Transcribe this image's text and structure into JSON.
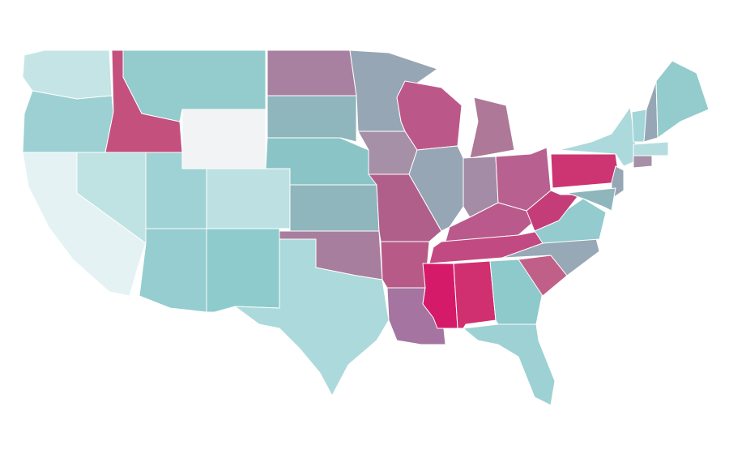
{
  "map": {
    "regions": [
      {
        "color": "#c5e4e6"
      },
      {
        "color": "#9dd0d2"
      },
      {
        "color": "#c4507e"
      },
      {
        "color": "#94cbcd"
      },
      {
        "color": "#f2f3f4"
      },
      {
        "color": "#e4f2f4"
      },
      {
        "color": "#bfe2e3"
      },
      {
        "color": "#9fd2d4"
      },
      {
        "color": "#bde1e3"
      },
      {
        "color": "#95cdd0"
      },
      {
        "color": "#8dcbcc"
      },
      {
        "color": "#a880a0"
      },
      {
        "color": "#8fb5bd"
      },
      {
        "color": "#8ac4c7"
      },
      {
        "color": "#8fb5bd"
      },
      {
        "color": "#a87e9e"
      },
      {
        "color": "#acd9dc"
      },
      {
        "color": "#97a6b4"
      },
      {
        "color": "#a590a8"
      },
      {
        "color": "#b05f8a"
      },
      {
        "color": "#b75a87"
      },
      {
        "color": "#a574a0"
      },
      {
        "color": "#bc5889"
      },
      {
        "color": "#97a6b4"
      },
      {
        "color": "#ae7898"
      },
      {
        "color": "#a48ca6"
      },
      {
        "color": "#b86090"
      },
      {
        "color": "#ba5a8c"
      },
      {
        "color": "#c24a82"
      },
      {
        "color": "#d61a6a"
      },
      {
        "color": "#d0306f"
      },
      {
        "color": "#8ec9cb"
      },
      {
        "color": "#9dd1d3"
      },
      {
        "color": "#c06088"
      },
      {
        "color": "#97a8b6"
      },
      {
        "color": "#93cbce"
      },
      {
        "color": "#c43d78"
      },
      {
        "color": "#cc3572"
      },
      {
        "color": "#acd9dc"
      },
      {
        "color": "#97a6b4"
      },
      {
        "color": "#8fb5bd"
      },
      {
        "color": "#a3d6d8"
      },
      {
        "color": "#97a6b4"
      },
      {
        "color": "#94cbcd"
      },
      {
        "color": "#b5dde0"
      },
      {
        "color": "#a590a8"
      }
    ]
  }
}
